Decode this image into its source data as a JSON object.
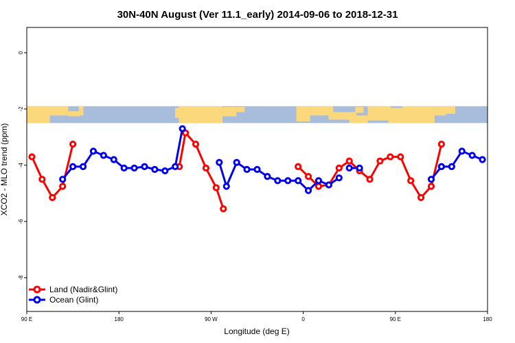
{
  "chart_data": {
    "type": "line",
    "title": "30N-40N August (Ver 11.1_early)   2014-09-06 to 2018-12-31",
    "xlabel": "Longitude (deg E)",
    "ylabel": "XCO2 - MLO trend (ppm)",
    "xlim": [
      90,
      540
    ],
    "ylim": [
      -9.2,
      0.9
    ],
    "x_ticks": [
      {
        "value": 90,
        "label": "90 E"
      },
      {
        "value": 180,
        "label": "180"
      },
      {
        "value": 270,
        "label": "90 W"
      },
      {
        "value": 360,
        "label": "0"
      },
      {
        "value": 450,
        "label": "90 E"
      },
      {
        "value": 540,
        "label": "180"
      }
    ],
    "y_ticks": [
      {
        "value": 0,
        "label": "0"
      },
      {
        "value": -2,
        "label": "-2"
      },
      {
        "value": -4,
        "label": "-4"
      },
      {
        "value": -6,
        "label": "-6"
      },
      {
        "value": -8,
        "label": "-8"
      }
    ],
    "map_band": {
      "y_top": -1.9,
      "y_bottom": -2.5,
      "ocean_color": "#a8bcdc",
      "land_color": "#fcd87c"
    },
    "legend_position": "bottom-left",
    "series": [
      {
        "name": "Land (Nadir&Glint)",
        "color": "#ff0000",
        "segments": [
          {
            "x": [
              95,
              105,
              115,
              125,
              135
            ],
            "y": [
              -3.7,
              -4.5,
              -5.15,
              -4.75,
              -3.25
            ]
          },
          {
            "x": [
              239,
              245,
              255,
              265,
              275,
              282
            ],
            "y": [
              -4.05,
              -2.85,
              -3.25,
              -4.1,
              -4.8,
              -5.55
            ]
          },
          {
            "x": [
              355,
              365,
              375,
              385,
              395,
              405,
              415,
              425,
              435,
              445,
              455,
              465,
              475,
              485,
              495
            ],
            "y": [
              -4.05,
              -4.4,
              -4.75,
              -4.7,
              -4.1,
              -3.85,
              -4.2,
              -4.5,
              -3.85,
              -3.7,
              -3.7,
              -4.55,
              -5.15,
              -4.75,
              -3.25
            ]
          }
        ]
      },
      {
        "name": "Ocean (Glint)",
        "color": "#0000ee",
        "segments": [
          {
            "x": [
              125,
              135,
              145,
              155,
              165,
              175,
              185,
              195,
              205,
              215,
              225,
              235,
              242
            ],
            "y": [
              -4.5,
              -4.05,
              -4.05,
              -3.5,
              -3.65,
              -3.8,
              -4.1,
              -4.1,
              -4.05,
              -4.15,
              -4.2,
              -4.05,
              -2.7
            ]
          },
          {
            "x": [
              278,
              285,
              295,
              305,
              315,
              325,
              335,
              345,
              355,
              365,
              375,
              385,
              395
            ],
            "y": [
              -3.9,
              -4.75,
              -3.9,
              -4.15,
              -4.15,
              -4.4,
              -4.55,
              -4.55,
              -4.55,
              -4.9,
              -4.55,
              -4.7,
              -4.45
            ]
          },
          {
            "x": [
              405,
              415
            ],
            "y": [
              -4.1,
              -4.1
            ]
          },
          {
            "x": [
              485,
              495,
              505,
              515,
              525,
              535
            ],
            "y": [
              -4.5,
              -4.05,
              -4.05,
              -3.5,
              -3.65,
              -3.8
            ]
          }
        ]
      }
    ]
  }
}
